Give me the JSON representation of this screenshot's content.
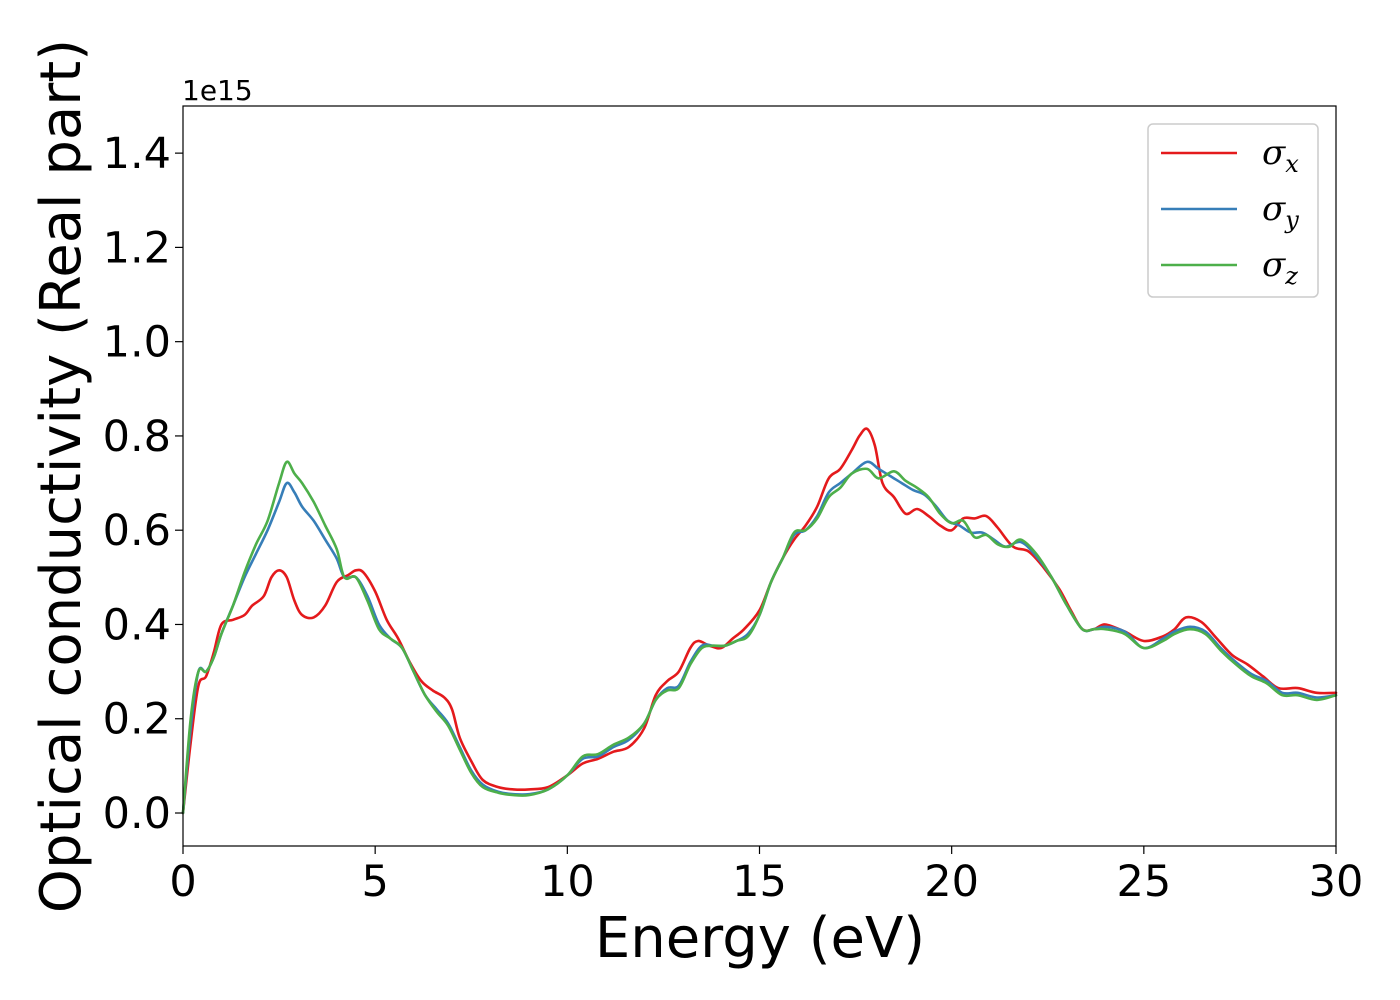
{
  "chart_data": {
    "type": "line",
    "xlabel": "Energy (eV)",
    "ylabel": "Optical conductivity (Real part)",
    "y_offset_label": "1e15",
    "xlim": [
      0,
      30
    ],
    "ylim": [
      -0.07,
      1.5
    ],
    "x_ticks": [
      0,
      5,
      10,
      15,
      20,
      25,
      30
    ],
    "x_tick_labels": [
      "0",
      "5",
      "10",
      "15",
      "20",
      "25",
      "30"
    ],
    "y_ticks": [
      0.0,
      0.2,
      0.4,
      0.6,
      0.8,
      1.0,
      1.2,
      1.4
    ],
    "y_tick_labels": [
      "0.0",
      "0.2",
      "0.4",
      "0.6",
      "0.8",
      "1.0",
      "1.2",
      "1.4"
    ],
    "grid": false,
    "legend_position": "top-right",
    "series": [
      {
        "name": "σx",
        "symbol": "σ",
        "subscript": "x",
        "color": "#e41a1c",
        "points": [
          [
            0,
            0.0
          ],
          [
            0.2,
            0.15
          ],
          [
            0.4,
            0.27
          ],
          [
            0.6,
            0.29
          ],
          [
            0.8,
            0.34
          ],
          [
            1.0,
            0.4
          ],
          [
            1.3,
            0.41
          ],
          [
            1.6,
            0.42
          ],
          [
            1.8,
            0.44
          ],
          [
            2.1,
            0.46
          ],
          [
            2.3,
            0.5
          ],
          [
            2.5,
            0.515
          ],
          [
            2.7,
            0.5
          ],
          [
            2.9,
            0.45
          ],
          [
            3.1,
            0.42
          ],
          [
            3.4,
            0.415
          ],
          [
            3.7,
            0.44
          ],
          [
            4.0,
            0.49
          ],
          [
            4.3,
            0.505
          ],
          [
            4.5,
            0.515
          ],
          [
            4.7,
            0.51
          ],
          [
            5.0,
            0.47
          ],
          [
            5.3,
            0.41
          ],
          [
            5.6,
            0.37
          ],
          [
            5.9,
            0.32
          ],
          [
            6.2,
            0.28
          ],
          [
            6.5,
            0.26
          ],
          [
            6.8,
            0.245
          ],
          [
            7.0,
            0.22
          ],
          [
            7.2,
            0.16
          ],
          [
            7.5,
            0.11
          ],
          [
            7.8,
            0.07
          ],
          [
            8.2,
            0.055
          ],
          [
            8.6,
            0.05
          ],
          [
            9.0,
            0.05
          ],
          [
            9.5,
            0.055
          ],
          [
            10.0,
            0.08
          ],
          [
            10.4,
            0.105
          ],
          [
            10.8,
            0.115
          ],
          [
            11.2,
            0.13
          ],
          [
            11.6,
            0.14
          ],
          [
            12.0,
            0.18
          ],
          [
            12.3,
            0.25
          ],
          [
            12.6,
            0.28
          ],
          [
            12.9,
            0.3
          ],
          [
            13.2,
            0.35
          ],
          [
            13.4,
            0.365
          ],
          [
            13.7,
            0.355
          ],
          [
            14.0,
            0.35
          ],
          [
            14.3,
            0.37
          ],
          [
            14.6,
            0.39
          ],
          [
            15.0,
            0.43
          ],
          [
            15.3,
            0.49
          ],
          [
            15.6,
            0.54
          ],
          [
            15.9,
            0.58
          ],
          [
            16.2,
            0.61
          ],
          [
            16.5,
            0.65
          ],
          [
            16.8,
            0.71
          ],
          [
            17.1,
            0.73
          ],
          [
            17.4,
            0.77
          ],
          [
            17.6,
            0.8
          ],
          [
            17.8,
            0.815
          ],
          [
            18.0,
            0.78
          ],
          [
            18.2,
            0.7
          ],
          [
            18.5,
            0.67
          ],
          [
            18.8,
            0.635
          ],
          [
            19.1,
            0.645
          ],
          [
            19.4,
            0.63
          ],
          [
            19.7,
            0.61
          ],
          [
            20.0,
            0.6
          ],
          [
            20.3,
            0.625
          ],
          [
            20.6,
            0.625
          ],
          [
            20.9,
            0.63
          ],
          [
            21.2,
            0.605
          ],
          [
            21.6,
            0.565
          ],
          [
            22.0,
            0.555
          ],
          [
            22.4,
            0.52
          ],
          [
            22.8,
            0.475
          ],
          [
            23.1,
            0.43
          ],
          [
            23.4,
            0.39
          ],
          [
            23.7,
            0.39
          ],
          [
            24.0,
            0.4
          ],
          [
            24.5,
            0.385
          ],
          [
            25.0,
            0.365
          ],
          [
            25.5,
            0.375
          ],
          [
            25.8,
            0.39
          ],
          [
            26.1,
            0.415
          ],
          [
            26.5,
            0.405
          ],
          [
            26.9,
            0.37
          ],
          [
            27.3,
            0.335
          ],
          [
            27.7,
            0.315
          ],
          [
            28.1,
            0.29
          ],
          [
            28.5,
            0.265
          ],
          [
            29.0,
            0.265
          ],
          [
            29.5,
            0.255
          ],
          [
            30.0,
            0.255
          ]
        ]
      },
      {
        "name": "σy",
        "symbol": "σ",
        "subscript": "y",
        "color": "#377eb8",
        "points": [
          [
            0,
            0.0
          ],
          [
            0.2,
            0.18
          ],
          [
            0.4,
            0.3
          ],
          [
            0.6,
            0.3
          ],
          [
            0.8,
            0.33
          ],
          [
            1.0,
            0.38
          ],
          [
            1.3,
            0.44
          ],
          [
            1.6,
            0.5
          ],
          [
            1.9,
            0.55
          ],
          [
            2.2,
            0.6
          ],
          [
            2.5,
            0.66
          ],
          [
            2.7,
            0.7
          ],
          [
            2.9,
            0.68
          ],
          [
            3.1,
            0.65
          ],
          [
            3.4,
            0.62
          ],
          [
            3.7,
            0.58
          ],
          [
            4.0,
            0.54
          ],
          [
            4.2,
            0.5
          ],
          [
            4.5,
            0.5
          ],
          [
            4.8,
            0.46
          ],
          [
            5.1,
            0.4
          ],
          [
            5.4,
            0.37
          ],
          [
            5.7,
            0.35
          ],
          [
            6.0,
            0.3
          ],
          [
            6.3,
            0.25
          ],
          [
            6.6,
            0.22
          ],
          [
            6.9,
            0.19
          ],
          [
            7.2,
            0.14
          ],
          [
            7.5,
            0.09
          ],
          [
            7.8,
            0.06
          ],
          [
            8.2,
            0.045
          ],
          [
            8.6,
            0.04
          ],
          [
            9.0,
            0.04
          ],
          [
            9.5,
            0.05
          ],
          [
            10.0,
            0.08
          ],
          [
            10.4,
            0.115
          ],
          [
            10.8,
            0.12
          ],
          [
            11.2,
            0.14
          ],
          [
            11.6,
            0.155
          ],
          [
            12.0,
            0.19
          ],
          [
            12.3,
            0.24
          ],
          [
            12.6,
            0.265
          ],
          [
            12.9,
            0.27
          ],
          [
            13.2,
            0.32
          ],
          [
            13.5,
            0.355
          ],
          [
            13.8,
            0.355
          ],
          [
            14.1,
            0.355
          ],
          [
            14.4,
            0.365
          ],
          [
            14.7,
            0.38
          ],
          [
            15.0,
            0.42
          ],
          [
            15.3,
            0.49
          ],
          [
            15.6,
            0.54
          ],
          [
            15.9,
            0.59
          ],
          [
            16.2,
            0.6
          ],
          [
            16.5,
            0.63
          ],
          [
            16.8,
            0.68
          ],
          [
            17.1,
            0.7
          ],
          [
            17.4,
            0.72
          ],
          [
            17.8,
            0.745
          ],
          [
            18.1,
            0.73
          ],
          [
            18.4,
            0.715
          ],
          [
            18.7,
            0.7
          ],
          [
            19.0,
            0.685
          ],
          [
            19.3,
            0.675
          ],
          [
            19.6,
            0.65
          ],
          [
            19.9,
            0.62
          ],
          [
            20.2,
            0.61
          ],
          [
            20.5,
            0.595
          ],
          [
            20.8,
            0.595
          ],
          [
            21.1,
            0.58
          ],
          [
            21.4,
            0.565
          ],
          [
            21.8,
            0.575
          ],
          [
            22.2,
            0.545
          ],
          [
            22.6,
            0.5
          ],
          [
            23.0,
            0.44
          ],
          [
            23.4,
            0.39
          ],
          [
            23.7,
            0.39
          ],
          [
            24.0,
            0.395
          ],
          [
            24.5,
            0.385
          ],
          [
            25.0,
            0.35
          ],
          [
            25.5,
            0.37
          ],
          [
            25.8,
            0.385
          ],
          [
            26.2,
            0.395
          ],
          [
            26.6,
            0.385
          ],
          [
            27.0,
            0.35
          ],
          [
            27.4,
            0.32
          ],
          [
            27.8,
            0.295
          ],
          [
            28.2,
            0.28
          ],
          [
            28.6,
            0.255
          ],
          [
            29.0,
            0.255
          ],
          [
            29.5,
            0.245
          ],
          [
            30.0,
            0.25
          ]
        ]
      },
      {
        "name": "σz",
        "symbol": "σ",
        "subscript": "z",
        "color": "#4daf4a",
        "points": [
          [
            0,
            0.0
          ],
          [
            0.2,
            0.2
          ],
          [
            0.4,
            0.3
          ],
          [
            0.6,
            0.3
          ],
          [
            0.8,
            0.33
          ],
          [
            1.0,
            0.38
          ],
          [
            1.3,
            0.44
          ],
          [
            1.6,
            0.51
          ],
          [
            1.9,
            0.57
          ],
          [
            2.2,
            0.62
          ],
          [
            2.5,
            0.7
          ],
          [
            2.7,
            0.745
          ],
          [
            2.9,
            0.72
          ],
          [
            3.1,
            0.7
          ],
          [
            3.4,
            0.66
          ],
          [
            3.7,
            0.61
          ],
          [
            4.0,
            0.56
          ],
          [
            4.2,
            0.5
          ],
          [
            4.5,
            0.5
          ],
          [
            4.8,
            0.45
          ],
          [
            5.1,
            0.39
          ],
          [
            5.4,
            0.37
          ],
          [
            5.7,
            0.35
          ],
          [
            6.0,
            0.3
          ],
          [
            6.3,
            0.25
          ],
          [
            6.6,
            0.215
          ],
          [
            6.9,
            0.185
          ],
          [
            7.2,
            0.135
          ],
          [
            7.5,
            0.085
          ],
          [
            7.8,
            0.055
          ],
          [
            8.2,
            0.043
          ],
          [
            8.6,
            0.038
          ],
          [
            9.0,
            0.038
          ],
          [
            9.5,
            0.05
          ],
          [
            10.0,
            0.08
          ],
          [
            10.4,
            0.12
          ],
          [
            10.8,
            0.125
          ],
          [
            11.2,
            0.145
          ],
          [
            11.6,
            0.16
          ],
          [
            12.0,
            0.19
          ],
          [
            12.3,
            0.24
          ],
          [
            12.6,
            0.26
          ],
          [
            12.9,
            0.265
          ],
          [
            13.2,
            0.315
          ],
          [
            13.5,
            0.35
          ],
          [
            13.8,
            0.355
          ],
          [
            14.1,
            0.355
          ],
          [
            14.4,
            0.365
          ],
          [
            14.7,
            0.375
          ],
          [
            15.0,
            0.42
          ],
          [
            15.3,
            0.49
          ],
          [
            15.6,
            0.54
          ],
          [
            15.9,
            0.595
          ],
          [
            16.2,
            0.6
          ],
          [
            16.5,
            0.625
          ],
          [
            16.8,
            0.67
          ],
          [
            17.1,
            0.69
          ],
          [
            17.4,
            0.72
          ],
          [
            17.8,
            0.73
          ],
          [
            18.1,
            0.71
          ],
          [
            18.5,
            0.725
          ],
          [
            18.8,
            0.705
          ],
          [
            19.1,
            0.69
          ],
          [
            19.4,
            0.67
          ],
          [
            19.7,
            0.635
          ],
          [
            20.0,
            0.615
          ],
          [
            20.3,
            0.62
          ],
          [
            20.6,
            0.585
          ],
          [
            20.9,
            0.59
          ],
          [
            21.2,
            0.57
          ],
          [
            21.5,
            0.565
          ],
          [
            21.8,
            0.58
          ],
          [
            22.2,
            0.55
          ],
          [
            22.6,
            0.5
          ],
          [
            23.0,
            0.44
          ],
          [
            23.4,
            0.39
          ],
          [
            23.7,
            0.39
          ],
          [
            24.0,
            0.39
          ],
          [
            24.5,
            0.38
          ],
          [
            25.0,
            0.35
          ],
          [
            25.5,
            0.365
          ],
          [
            25.8,
            0.38
          ],
          [
            26.2,
            0.39
          ],
          [
            26.6,
            0.38
          ],
          [
            27.0,
            0.345
          ],
          [
            27.4,
            0.315
          ],
          [
            27.8,
            0.29
          ],
          [
            28.2,
            0.275
          ],
          [
            28.6,
            0.25
          ],
          [
            29.0,
            0.25
          ],
          [
            29.5,
            0.24
          ],
          [
            30.0,
            0.25
          ]
        ]
      }
    ]
  }
}
